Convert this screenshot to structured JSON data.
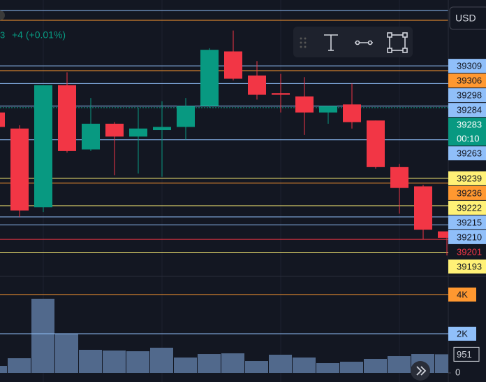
{
  "chart_data": {
    "type": "candlestick",
    "header": {
      "last_fragment": "3",
      "change": "+4 (+0.01%)"
    },
    "currency": "USD",
    "up_color": "#089981",
    "down_color": "#f23645",
    "ylim": [
      39178,
      39350
    ],
    "open": [
      39280,
      39270,
      39221,
      39297,
      39257,
      39273,
      39265,
      39269,
      39271,
      39284,
      39318,
      39303,
      39292,
      39290,
      39280,
      39285,
      39275,
      39246,
      39234,
      39206
    ],
    "high": [
      39282,
      39272,
      39297,
      39305,
      39289,
      39274,
      39283,
      39287,
      39289,
      39320,
      39331,
      39312,
      39304,
      39302,
      39284,
      39298,
      39275,
      39248,
      39235,
      39206
    ],
    "low": [
      39270,
      39215,
      39218,
      39255,
      39256,
      39241,
      39242,
      39240,
      39263,
      39283,
      39300,
      39288,
      39280,
      39266,
      39273,
      39270,
      39245,
      39217,
      39201,
      39191
    ],
    "close": [
      39271,
      39219,
      39297,
      39256,
      39273,
      39265,
      39270,
      39271,
      39284,
      39319,
      39301,
      39291,
      39291,
      39280,
      39284,
      39274,
      39246,
      39233,
      39207,
      39202
    ],
    "price_labels": [
      {
        "value": 39309,
        "color": "#90bff9"
      },
      {
        "value": 39306,
        "color": "#ff9830"
      },
      {
        "value": 39298,
        "color": "#90bff9"
      },
      {
        "value": 39284,
        "color": "#90bff9"
      },
      {
        "value": 39283,
        "color": "#089981",
        "countdown": "00:10"
      },
      {
        "value": 39263,
        "color": "#90bff9"
      },
      {
        "value": 39239,
        "color": "#fff176"
      },
      {
        "value": 39236,
        "color": "#ff9830"
      },
      {
        "value": 39222,
        "color": "#fff176"
      },
      {
        "value": 39215,
        "color": "#90bff9"
      },
      {
        "value": 39210,
        "color": "#90bff9"
      },
      {
        "value": 39201,
        "color": "#f23645"
      },
      {
        "value": 39193,
        "color": "#fff176"
      }
    ],
    "volume": {
      "color": "#51698c",
      "values": [
        357,
        750,
        3786,
        2000,
        1179,
        1143,
        1107,
        1286,
        786,
        964,
        1000,
        607,
        929,
        786,
        500,
        571,
        714,
        857,
        964,
        951
      ],
      "ylim": [
        -464,
        4929
      ],
      "yticks": [
        0,
        {
          "value": 2000,
          "label": "2K",
          "color": "#90bff9"
        },
        {
          "value": 4000,
          "label": "4K",
          "color": "#ff9830"
        }
      ]
    }
  }
}
